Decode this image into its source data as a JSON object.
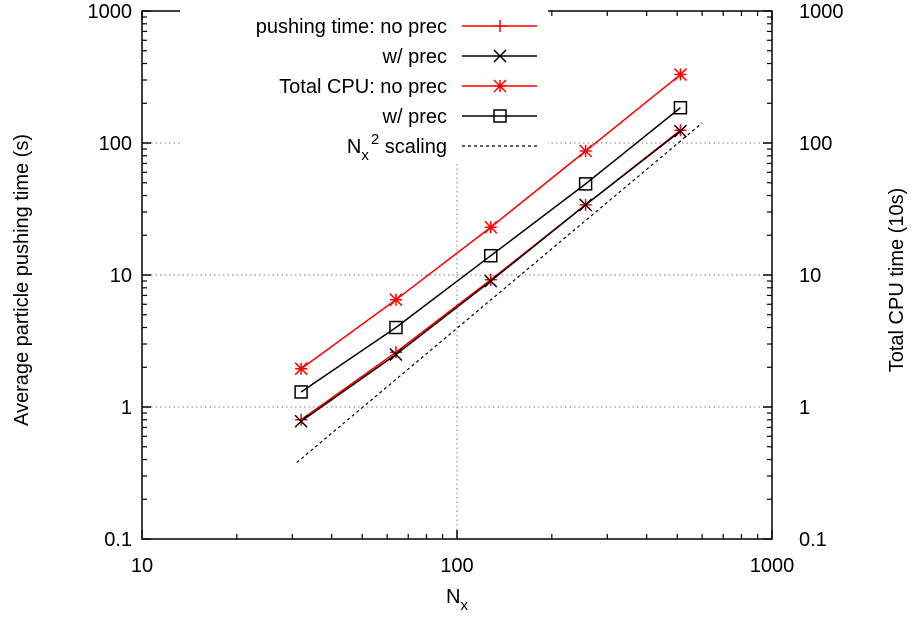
{
  "chart_data": {
    "type": "line",
    "xlabel": "N",
    "xlabel_sub": "x",
    "ylabel": "Average particle pushing time (s)",
    "y2label": "Total CPU time (10s)",
    "xscale": "log",
    "yscale": "log",
    "xlim": [
      10,
      1000
    ],
    "ylim": [
      0.1,
      1000
    ],
    "y2lim": [
      0.1,
      1000
    ],
    "xticks": [
      "10",
      "100",
      "1000"
    ],
    "yticks": [
      "0.1",
      "1",
      "10",
      "100",
      "1000"
    ],
    "y2ticks": [
      "0.1",
      "1",
      "10",
      "100",
      "1000"
    ],
    "grid": true,
    "legend_position": "top-left",
    "series": [
      {
        "name": "pushing time: no prec",
        "color": "#ff0000",
        "marker": "plus",
        "dash": "solid",
        "x": [
          32,
          64,
          128,
          256,
          512
        ],
        "y": [
          0.8,
          2.6,
          9.2,
          34,
          125
        ]
      },
      {
        "name": "w/ prec",
        "color": "#000000",
        "marker": "cross",
        "dash": "solid",
        "x": [
          32,
          64,
          128,
          256,
          512
        ],
        "y": [
          0.78,
          2.5,
          9.0,
          34,
          123
        ]
      },
      {
        "name": "Total CPU: no prec",
        "color": "#ff0000",
        "marker": "star",
        "dash": "solid",
        "x": [
          32,
          64,
          128,
          256,
          512
        ],
        "y": [
          1.95,
          6.5,
          23,
          87,
          330
        ]
      },
      {
        "name": "w/ prec",
        "color": "#000000",
        "marker": "square",
        "dash": "solid",
        "x": [
          32,
          64,
          128,
          256,
          512
        ],
        "y": [
          1.3,
          4.0,
          14,
          49,
          185
        ]
      },
      {
        "name": "N",
        "name_sub": "x",
        "name_sup": "2",
        "name_suffix": " scaling",
        "color": "#000000",
        "marker": "none",
        "dash": "dotted",
        "x": [
          31,
          600
        ],
        "y": [
          0.38,
          142
        ]
      }
    ]
  }
}
